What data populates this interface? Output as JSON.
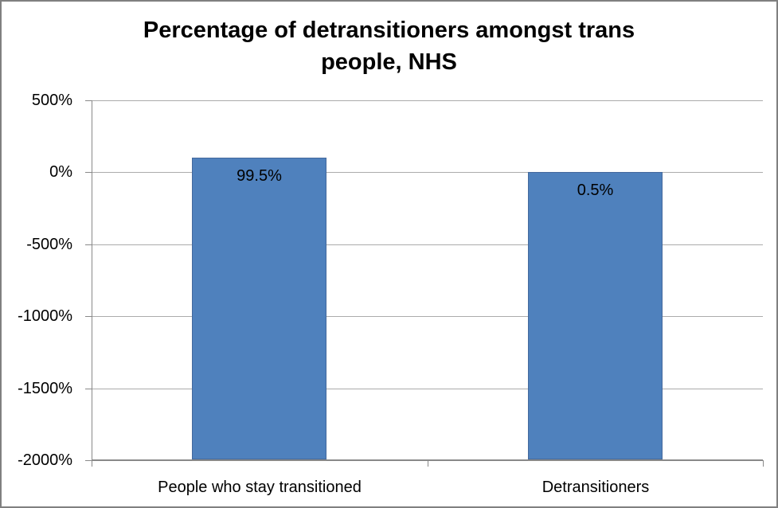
{
  "window": {
    "background_color": "#FFFFFF",
    "border_color": "#808080"
  },
  "chart_data": {
    "type": "bar",
    "title": "Percentage of detransitioners amongst trans people, NHS",
    "categories": [
      "People who stay transitioned",
      "Detransitioners"
    ],
    "values": [
      99.5,
      0.5
    ],
    "data_labels": [
      "99.5%",
      "0.5%"
    ],
    "y_ticks": [
      {
        "value": 500,
        "label": "500%"
      },
      {
        "value": 0,
        "label": "0%"
      },
      {
        "value": -500,
        "label": "-500%"
      },
      {
        "value": -1000,
        "label": "-1000%"
      },
      {
        "value": -1500,
        "label": "-1500%"
      },
      {
        "value": -2000,
        "label": "-2000%"
      }
    ],
    "ylim": [
      -2000,
      500
    ],
    "bar_base_value": -2000,
    "xlabel": "",
    "ylabel": "",
    "grid": true,
    "legend": false,
    "bar_color": "#4F81BD",
    "bar_border_color": "#44699D",
    "gridline_color": "#ABABAB",
    "axis_color": "#898989",
    "text_color": "#000000"
  }
}
